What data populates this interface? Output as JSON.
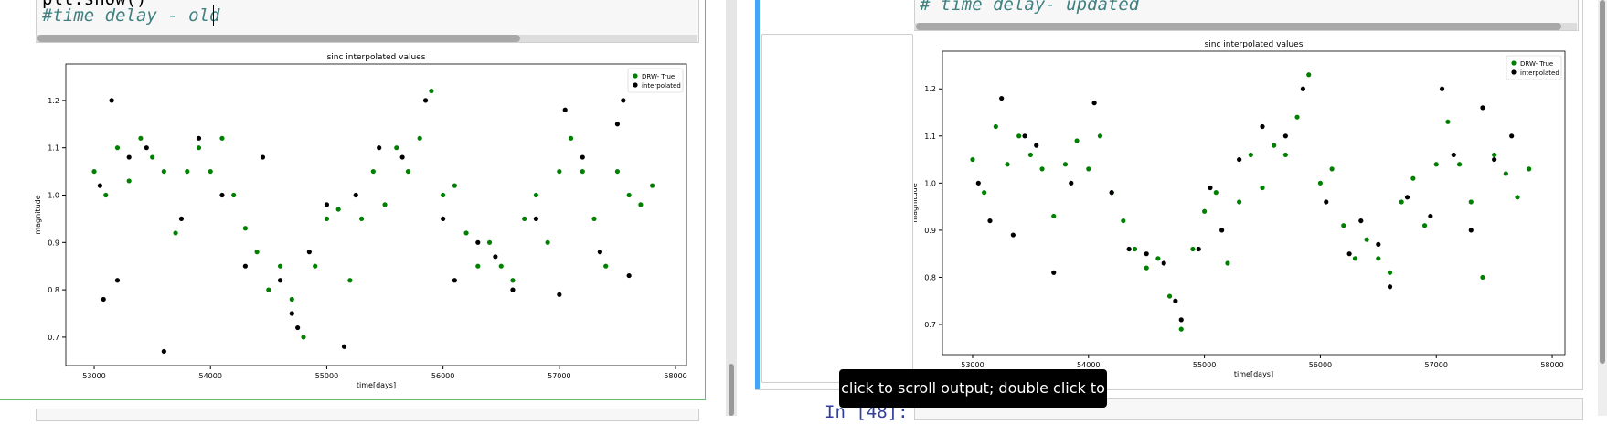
{
  "left": {
    "code_lines": [
      "plt.show()",
      "#time delay - old"
    ],
    "chart_data": {
      "type": "scatter",
      "title": "sinc interpolated values",
      "x_label": "time[days]",
      "y_label": "magnitude",
      "legend": "upper right",
      "xlim": [
        52756,
        58094
      ],
      "ylim": [
        0.64,
        1.277
      ],
      "xticks": [
        53000,
        54000,
        55000,
        56000,
        57000,
        58000
      ],
      "yticks": [
        0.7,
        0.8,
        0.9,
        {
          "value": 1,
          "label": "1.0"
        },
        1.1,
        1.2
      ],
      "series": [
        {
          "name": "DRW- True",
          "color": "#008000",
          "x": [
            53000,
            53100,
            53200,
            53300,
            53400,
            53500,
            53600,
            53700,
            53800,
            53900,
            54000,
            54100,
            54200,
            54300,
            54400,
            54500,
            54600,
            54700,
            54800,
            54900,
            55000,
            55100,
            55200,
            55300,
            55400,
            55500,
            55600,
            55700,
            55800,
            55900,
            56000,
            56100,
            56200,
            56300,
            56400,
            56500,
            56600,
            56700,
            56800,
            56900,
            57000,
            57100,
            57200,
            57300,
            57400,
            57500,
            57600,
            57700,
            57800
          ],
          "values": [
            1.05,
            1.0,
            1.1,
            1.03,
            1.12,
            1.08,
            1.05,
            0.92,
            1.05,
            1.1,
            1.05,
            1.12,
            1.0,
            0.93,
            0.88,
            0.8,
            0.85,
            0.78,
            0.7,
            0.85,
            0.95,
            0.97,
            0.82,
            0.95,
            1.05,
            0.98,
            1.1,
            1.05,
            1.12,
            1.22,
            1.0,
            1.02,
            0.92,
            0.85,
            0.9,
            0.85,
            0.82,
            0.95,
            1.0,
            0.9,
            1.05,
            1.12,
            1.05,
            0.95,
            0.85,
            1.05,
            1.0,
            0.98,
            1.02
          ]
        },
        {
          "name": "interpolated",
          "color": "#000000",
          "x": [
            53050,
            53080,
            53150,
            53200,
            53300,
            53450,
            53600,
            53750,
            53900,
            54100,
            54300,
            54450,
            54600,
            54700,
            54750,
            54850,
            55000,
            55150,
            55250,
            55450,
            55650,
            55850,
            56000,
            56100,
            56300,
            56450,
            56600,
            56800,
            57000,
            57050,
            57200,
            57350,
            57500,
            57550,
            57600
          ],
          "values": [
            1.02,
            0.78,
            1.2,
            0.82,
            1.08,
            1.1,
            0.67,
            0.95,
            1.12,
            1.0,
            0.85,
            1.08,
            0.82,
            0.75,
            0.72,
            0.88,
            0.98,
            0.68,
            1.0,
            1.1,
            1.08,
            1.2,
            0.95,
            0.82,
            0.9,
            0.87,
            0.8,
            0.95,
            0.79,
            1.18,
            1.08,
            0.88,
            1.15,
            1.2,
            0.83
          ]
        }
      ]
    }
  },
  "right": {
    "code_line": "# time delay- updated",
    "chart_data": {
      "type": "scatter",
      "title": "sinc interpolated values",
      "x_label": "time[days]",
      "y_label": "magnitude",
      "legend": "upper right",
      "xlim": [
        52740,
        58110
      ],
      "ylim": [
        0.636,
        1.28
      ],
      "xticks": [
        53000,
        54000,
        55000,
        56000,
        57000,
        58000
      ],
      "yticks": [
        0.7,
        0.8,
        0.9,
        {
          "value": 1,
          "label": "1.0"
        },
        1.1,
        1.2
      ],
      "series": [
        {
          "name": "DRW- True",
          "color": "#008000",
          "x": [
            53000,
            53100,
            53200,
            53300,
            53400,
            53500,
            53600,
            53700,
            53800,
            53900,
            54000,
            54100,
            54200,
            54300,
            54400,
            54500,
            54600,
            54700,
            54800,
            54900,
            55000,
            55100,
            55200,
            55300,
            55400,
            55500,
            55600,
            55700,
            55800,
            55900,
            56000,
            56100,
            56200,
            56300,
            56400,
            56500,
            56600,
            56700,
            56800,
            56900,
            57000,
            57100,
            57200,
            57300,
            57400,
            57500,
            57600,
            57700,
            57800
          ],
          "values": [
            1.05,
            0.98,
            1.12,
            1.04,
            1.1,
            1.06,
            1.03,
            0.93,
            1.04,
            1.09,
            1.03,
            1.1,
            0.98,
            0.92,
            0.86,
            0.82,
            0.84,
            0.76,
            0.69,
            0.86,
            0.94,
            0.98,
            0.83,
            0.96,
            1.06,
            0.99,
            1.08,
            1.06,
            1.14,
            1.23,
            1.0,
            1.03,
            0.91,
            0.84,
            0.88,
            0.84,
            0.81,
            0.96,
            1.01,
            0.91,
            1.04,
            1.13,
            1.04,
            0.96,
            0.8,
            1.06,
            1.02,
            0.97,
            1.03
          ]
        },
        {
          "name": "interpolated",
          "color": "#000000",
          "x": [
            53050,
            53150,
            53250,
            53350,
            53450,
            53550,
            53700,
            53850,
            54050,
            54200,
            54350,
            54500,
            54650,
            54750,
            54800,
            54950,
            55050,
            55150,
            55300,
            55500,
            55700,
            55850,
            56050,
            56250,
            56350,
            56500,
            56600,
            56750,
            56950,
            57050,
            57150,
            57300,
            57400,
            57500,
            57650
          ],
          "values": [
            1.0,
            0.92,
            1.18,
            0.89,
            1.1,
            1.08,
            0.81,
            1.0,
            1.17,
            0.98,
            0.86,
            0.85,
            0.83,
            0.75,
            0.71,
            0.86,
            0.99,
            0.9,
            1.05,
            1.12,
            1.1,
            1.2,
            0.96,
            0.85,
            0.92,
            0.87,
            0.78,
            0.97,
            0.93,
            1.2,
            1.06,
            0.9,
            1.16,
            1.05,
            1.1
          ]
        }
      ]
    }
  },
  "tooltip": "click to scroll output; double click to hide",
  "next_prompt": "In [48]:"
}
